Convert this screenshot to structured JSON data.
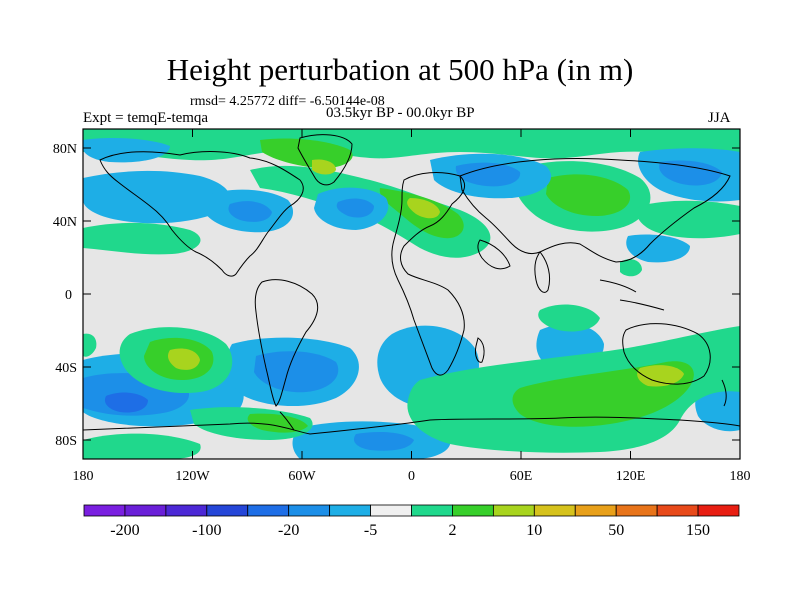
{
  "header": {
    "title": "Height perturbation at 500 hPa (in m)",
    "stats": "rmsd= 4.25772 diff= -6.50144e-08",
    "experiment": "Expt = temqE-temqa",
    "period": "03.5kyr BP - 00.0kyr BP",
    "season": "JJA"
  },
  "axes": {
    "lat_labels": [
      "80N",
      "40N",
      "0",
      "40S",
      "80S"
    ],
    "lat_values": [
      80,
      40,
      0,
      -40,
      -80
    ],
    "lon_labels": [
      "180",
      "120W",
      "60W",
      "0",
      "60E",
      "120E",
      "180"
    ],
    "lon_values": [
      -180,
      -120,
      -60,
      0,
      60,
      120,
      180
    ],
    "lat_range": [
      -90,
      90
    ],
    "lon_range": [
      -180,
      180
    ]
  },
  "colorbar": {
    "colors": [
      "#7a1fe0",
      "#6a1fd8",
      "#4c28d6",
      "#2546d8",
      "#1e6ee6",
      "#1c8fe8",
      "#1eaee6",
      "#f0f0f0",
      "#20d88c",
      "#37cf2a",
      "#a8d41e",
      "#d6c21c",
      "#e8a01a",
      "#e8741a",
      "#e84a1a",
      "#e81e12"
    ],
    "tick_labels": [
      "-200",
      "-100",
      "-20",
      "-5",
      "2",
      "10",
      "50",
      "150"
    ]
  },
  "colors": {
    "neutral": "#e6e6e6",
    "pos_light": "#20d88c",
    "pos_mid": "#37cf2a",
    "pos_strong": "#a8d41e",
    "neg_light": "#1eaee6",
    "neg_mid": "#1c8fe8",
    "neg_strong": "#1e6ee6"
  }
}
